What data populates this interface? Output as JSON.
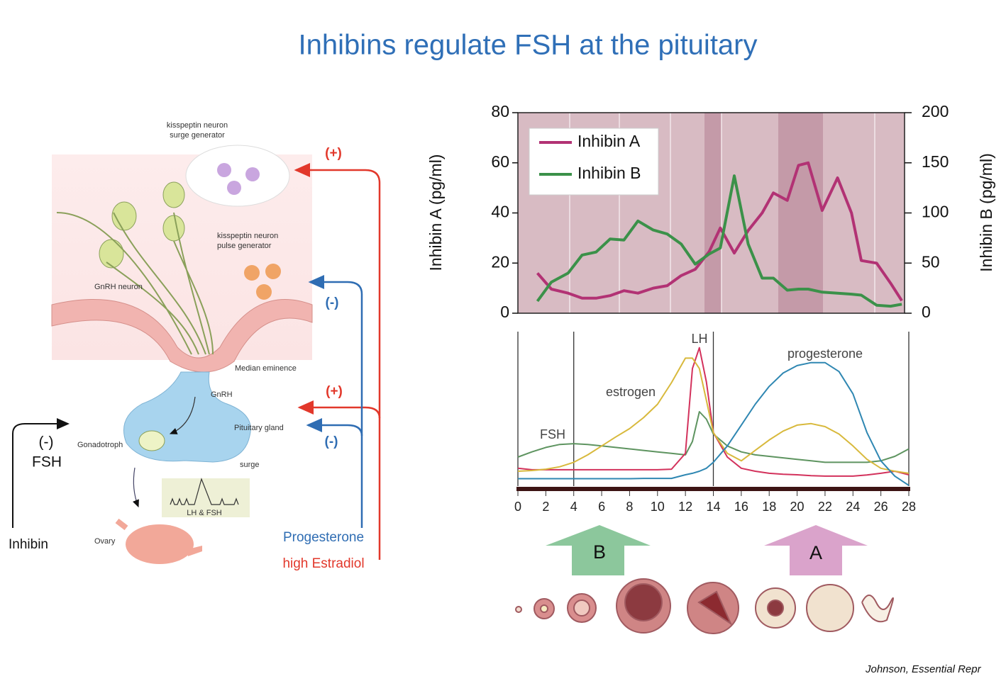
{
  "title": "Inhibins regulate FSH at the pituitary",
  "diagram": {
    "kisspeptin_surge": [
      "kisspeptin neuron",
      "surge generator"
    ],
    "kisspeptin_pulse": [
      "kisspeptin neuron",
      "pulse generator"
    ],
    "gnrh_neuron": "GnRH neuron",
    "median_eminence": "Median eminence",
    "gnrh": "GnRH",
    "pituitary": "Pituitary gland",
    "gonadotroph": "Gonadotroph",
    "surge": "surge",
    "lh_fsh": "LH & FSH",
    "ovary": "Ovary",
    "feedback": [
      "(+)",
      "(-)",
      "(+)",
      "(-)"
    ],
    "inhibin_effect": [
      "(-)",
      "FSH"
    ],
    "inhibin": "Inhibin",
    "progesterone": "Progesterone",
    "estradiol": "high Estradiol"
  },
  "chart_data": [
    {
      "type": "line",
      "ylabel": "Inhibin A (pg/ml)",
      "y2label": "Inhibin B (pg/ml)",
      "x": [
        1.4,
        2.4,
        3.6,
        4.6,
        5.6,
        6.6,
        7.6,
        8.6,
        9.7,
        10.7,
        11.7,
        12.7,
        13.7,
        14.5,
        15.5,
        16.5,
        17.5,
        18.3,
        19.3,
        20.1,
        20.8,
        21.8,
        22.9,
        23.9,
        24.6,
        25.7,
        26.7,
        27.5
      ],
      "xlim": [
        0,
        27.7
      ],
      "ylim": [
        0,
        80
      ],
      "yticks": [
        0,
        20,
        40,
        60,
        80
      ],
      "y2lim": [
        0,
        200
      ],
      "y2ticks": [
        0,
        50,
        100,
        150,
        200
      ],
      "legend": "upper left",
      "series": [
        {
          "name": "Inhibin A",
          "color": "#b23274",
          "values": [
            16,
            9.6,
            8,
            6,
            6,
            7,
            9,
            8,
            10,
            11,
            15,
            17.5,
            24.5,
            34,
            24,
            33,
            40,
            48,
            45,
            59,
            60,
            41,
            54,
            40,
            21,
            20,
            12,
            5
          ]
        },
        {
          "name": "Inhibin B",
          "color": "#3b9149",
          "axis": "y2",
          "values": [
            12,
            31,
            40,
            58,
            61,
            74,
            73,
            92,
            83,
            79,
            69,
            49,
            59,
            65,
            137,
            69,
            35,
            35,
            23,
            24,
            24,
            21,
            20,
            19,
            18,
            8,
            7,
            9
          ]
        }
      ]
    },
    {
      "type": "line",
      "x": [
        0,
        1,
        2,
        3,
        4,
        5,
        6,
        7,
        8,
        9,
        10,
        11,
        12,
        12.5,
        13,
        13.5,
        14,
        15,
        16,
        17,
        18,
        19,
        20,
        21,
        22,
        23,
        24,
        25,
        26,
        27,
        28
      ],
      "xlim": [
        0,
        28
      ],
      "xticks": [
        0,
        2,
        4,
        6,
        8,
        10,
        12,
        14,
        16,
        18,
        20,
        22,
        24,
        26,
        28
      ],
      "ylim": [
        0,
        100
      ],
      "vlines": [
        0,
        4,
        14,
        28
      ],
      "series": [
        {
          "name": "FSH",
          "color": "#5e9460",
          "values": [
            19.5,
            23,
            26,
            28,
            28.5,
            28,
            27,
            26,
            25,
            24,
            23,
            22,
            21,
            30,
            50,
            45,
            35,
            27,
            23,
            21,
            20,
            19,
            18,
            17,
            16,
            16,
            16,
            16,
            17,
            20,
            25
          ]
        },
        {
          "name": "LH",
          "color": "#d3325c",
          "values": [
            12,
            11,
            11,
            11,
            11,
            11,
            11,
            11,
            11,
            11,
            11,
            11.4,
            22,
            79,
            93,
            70,
            36,
            19.5,
            12,
            10,
            8.6,
            8,
            7.6,
            7,
            6.7,
            6.7,
            6.7,
            7.5,
            8.6,
            10,
            7.6
          ]
        },
        {
          "name": "estrogen",
          "color": "#d8b93c",
          "values": [
            10,
            10.5,
            11.4,
            13,
            16,
            21,
            27,
            33,
            38.6,
            46,
            55,
            69.5,
            86,
            86,
            79,
            57.6,
            36,
            22,
            17,
            24,
            31,
            37,
            41,
            42,
            40,
            35,
            27,
            18,
            12,
            10,
            8.6
          ]
        },
        {
          "name": "progesterone",
          "color": "#2f87b2",
          "values": [
            5,
            5,
            5,
            5,
            5,
            5,
            5,
            5,
            5,
            5.2,
            5.2,
            5.2,
            7.6,
            8.6,
            10,
            12,
            16,
            27,
            41,
            55,
            67,
            76,
            81,
            83,
            83,
            77,
            62,
            36,
            17,
            6.7,
            0.5
          ]
        }
      ]
    }
  ],
  "phase_arrows": [
    {
      "label": "B",
      "color": "#8cc79c"
    },
    {
      "label": "A",
      "color": "#daa3cb"
    }
  ],
  "citation": "Johnson, Essential Repr"
}
